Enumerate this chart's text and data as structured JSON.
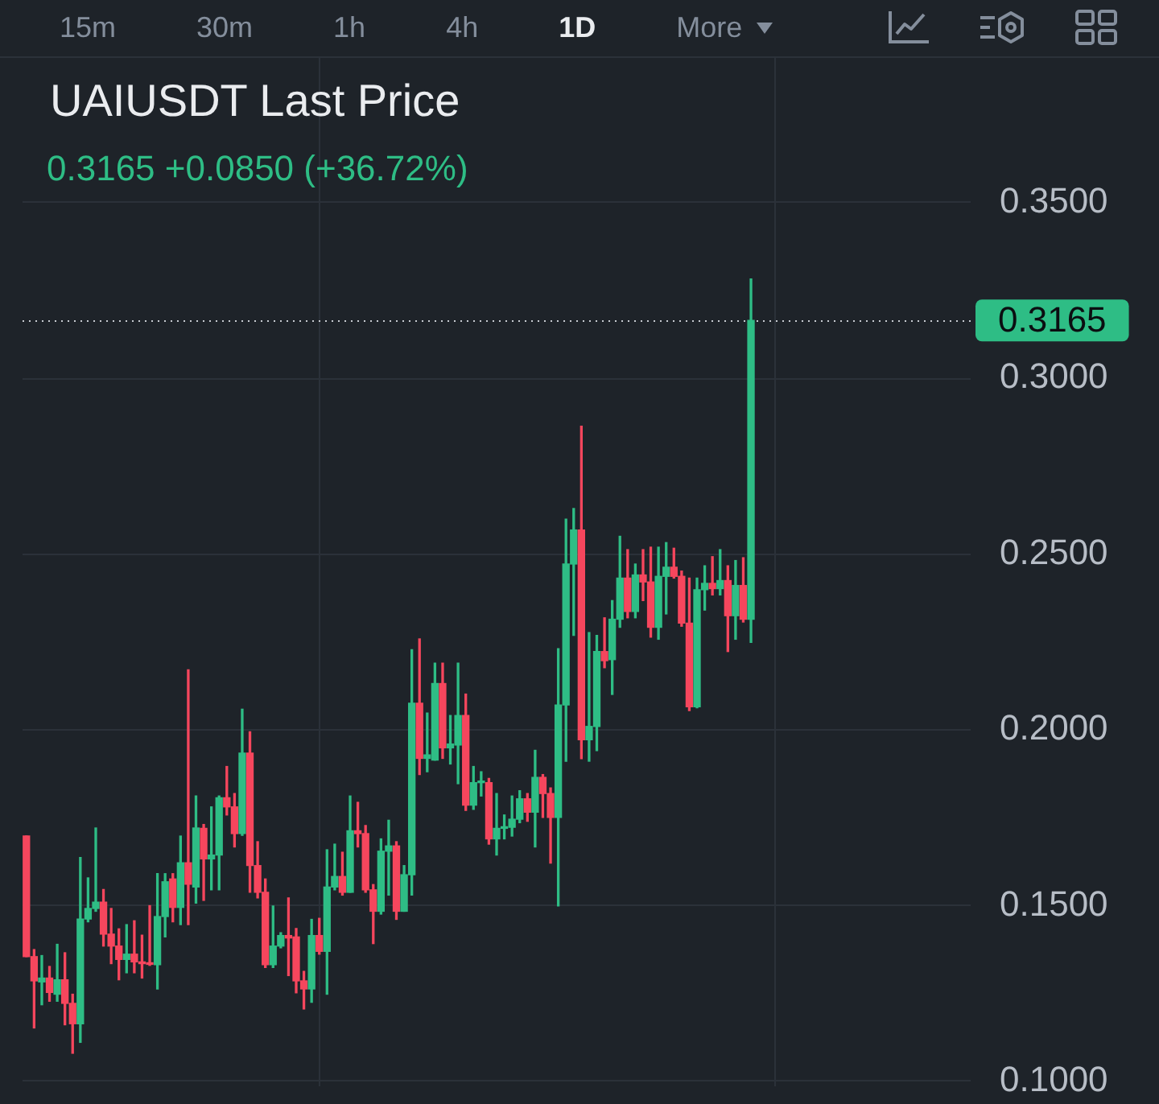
{
  "chart_data": {
    "type": "candlestick",
    "title": "UAIUSDT Last Price",
    "subtitle": "0.3165 +0.0850 (+36.72%)",
    "annotations": [
      "15m",
      "30m",
      "1h",
      "4h",
      "1D",
      "More"
    ],
    "categories": [
      null,
      null,
      null,
      null,
      null,
      null,
      null,
      null,
      null,
      null,
      null,
      null,
      null,
      null,
      null,
      null,
      null,
      null,
      null,
      null,
      null,
      null,
      null,
      null,
      null,
      null,
      null,
      null,
      null,
      null,
      null,
      null,
      null,
      null,
      null,
      null,
      null,
      null,
      null,
      null,
      null,
      null,
      null,
      null,
      null,
      null,
      null,
      null,
      null,
      null,
      null,
      null,
      null,
      null,
      null,
      null,
      null,
      null,
      null,
      null,
      null,
      null,
      null,
      null,
      null,
      null,
      null,
      null,
      null,
      null,
      null,
      null,
      null,
      null,
      null,
      null,
      null,
      null,
      null,
      null,
      null,
      null,
      null,
      null,
      null,
      null,
      null,
      null,
      null,
      null,
      null,
      null,
      null,
      null,
      null,
      null,
      null,
      null,
      null,
      null,
      null,
      null,
      null,
      null,
      null,
      null,
      null,
      null,
      null,
      null,
      null,
      null,
      null,
      null,
      null,
      null,
      null,
      null,
      null,
      null,
      null,
      null,
      null
    ],
    "ohlc": [
      [
        0.1698,
        0.1698,
        0.1355,
        0.1355
      ],
      [
        0.1355,
        0.1375,
        0.1152,
        0.1286
      ],
      [
        0.1283,
        0.1358,
        0.1218,
        0.1294
      ],
      [
        0.1294,
        0.1327,
        0.1228,
        0.1253
      ],
      [
        0.1248,
        0.139,
        0.1228,
        0.1289
      ],
      [
        0.1289,
        0.1366,
        0.1161,
        0.1222
      ],
      [
        0.1222,
        0.1248,
        0.108,
        0.1164
      ],
      [
        0.1164,
        0.1637,
        0.1111,
        0.1462
      ],
      [
        0.1462,
        0.1579,
        0.1454,
        0.1492
      ],
      [
        0.1492,
        0.1721,
        0.1484,
        0.151
      ],
      [
        0.151,
        0.1546,
        0.1385,
        0.1419
      ],
      [
        0.1419,
        0.1492,
        0.1335,
        0.1385
      ],
      [
        0.1385,
        0.1434,
        0.1289,
        0.1347
      ],
      [
        0.1347,
        0.1446,
        0.1309,
        0.1362
      ],
      [
        0.1362,
        0.1457,
        0.1309,
        0.134
      ],
      [
        0.134,
        0.1416,
        0.1294,
        0.1335
      ],
      [
        0.1335,
        0.15,
        0.133,
        0.1333
      ],
      [
        0.1332,
        0.1591,
        0.1263,
        0.1469
      ],
      [
        0.1469,
        0.1591,
        0.1411,
        0.1568
      ],
      [
        0.1576,
        0.1591,
        0.1454,
        0.1495
      ],
      [
        0.1495,
        0.1698,
        0.1446,
        0.1622
      ],
      [
        0.1622,
        0.2171,
        0.1446,
        0.1561
      ],
      [
        0.1553,
        0.1812,
        0.1507,
        0.1721
      ],
      [
        0.172,
        0.1731,
        0.1515,
        0.1633
      ],
      [
        0.1633,
        0.1781,
        0.1545,
        0.1644
      ],
      [
        0.1644,
        0.1812,
        0.1545,
        0.1807
      ],
      [
        0.1807,
        0.1896,
        0.1758,
        0.1781
      ],
      [
        0.1781,
        0.1819,
        0.1667,
        0.1705
      ],
      [
        0.1705,
        0.2059,
        0.17,
        0.1934
      ],
      [
        0.1934,
        0.1995,
        0.1538,
        0.1614
      ],
      [
        0.1614,
        0.1682,
        0.1522,
        0.1538
      ],
      [
        0.1538,
        0.1576,
        0.1324,
        0.1332
      ],
      [
        0.1332,
        0.1499,
        0.1324,
        0.1385
      ],
      [
        0.1385,
        0.1423,
        0.138,
        0.1415
      ],
      [
        0.1415,
        0.1522,
        0.1301,
        0.1408
      ],
      [
        0.1411,
        0.1435,
        0.1252,
        0.1286
      ],
      [
        0.1286,
        0.1313,
        0.1206,
        0.1263
      ],
      [
        0.1263,
        0.1461,
        0.1225,
        0.1415
      ],
      [
        0.1415,
        0.1464,
        0.1362,
        0.137
      ],
      [
        0.137,
        0.1659,
        0.1248,
        0.1553
      ],
      [
        0.1553,
        0.1675,
        0.1545,
        0.1583
      ],
      [
        0.1583,
        0.1652,
        0.153,
        0.1538
      ],
      [
        0.1538,
        0.1812,
        0.1538,
        0.1713
      ],
      [
        0.1713,
        0.1794,
        0.1667,
        0.1705
      ],
      [
        0.1705,
        0.1728,
        0.1538,
        0.1545
      ],
      [
        0.1545,
        0.156,
        0.1392,
        0.1484
      ],
      [
        0.1484,
        0.169,
        0.1476,
        0.1655
      ],
      [
        0.1655,
        0.1743,
        0.153,
        0.167
      ],
      [
        0.167,
        0.1682,
        0.1461,
        0.1484
      ],
      [
        0.1484,
        0.1614,
        0.1484,
        0.1588
      ],
      [
        0.1588,
        0.2228,
        0.153,
        0.2076
      ],
      [
        0.2076,
        0.2259,
        0.1873,
        0.1919
      ],
      [
        0.1919,
        0.2048,
        0.1881,
        0.1929
      ],
      [
        0.1914,
        0.219,
        0.1914,
        0.2132
      ],
      [
        0.2132,
        0.219,
        0.1919,
        0.1949
      ],
      [
        0.1949,
        0.2041,
        0.1903,
        0.196
      ],
      [
        0.1957,
        0.219,
        0.1847,
        0.2041
      ],
      [
        0.2041,
        0.2102,
        0.1771,
        0.1786
      ],
      [
        0.1786,
        0.1896,
        0.1774,
        0.185
      ],
      [
        0.185,
        0.1881,
        0.1812,
        0.1853
      ],
      [
        0.185,
        0.1862,
        0.1675,
        0.169
      ],
      [
        0.169,
        0.1819,
        0.1644,
        0.172
      ],
      [
        0.172,
        0.1758,
        0.169,
        0.1723
      ],
      [
        0.1723,
        0.1812,
        0.1698,
        0.1746
      ],
      [
        0.1746,
        0.1827,
        0.1736,
        0.1804
      ],
      [
        0.1804,
        0.1819,
        0.174,
        0.1766
      ],
      [
        0.1766,
        0.1942,
        0.1667,
        0.1865
      ],
      [
        0.1865,
        0.1873,
        0.1751,
        0.1819
      ],
      [
        0.1819,
        0.1835,
        0.1621,
        0.1751
      ],
      [
        0.1751,
        0.2231,
        0.1499,
        0.2071
      ],
      [
        0.2071,
        0.26,
        0.1911,
        0.2472
      ],
      [
        0.2472,
        0.263,
        0.2269,
        0.2569
      ],
      [
        0.2569,
        0.2864,
        0.1918,
        0.1972
      ],
      [
        0.1972,
        0.2277,
        0.1911,
        0.201
      ],
      [
        0.201,
        0.2269,
        0.1941,
        0.2223
      ],
      [
        0.2223,
        0.2319,
        0.2177,
        0.2197
      ],
      [
        0.22,
        0.2368,
        0.2101,
        0.2315
      ],
      [
        0.2315,
        0.2551,
        0.2292,
        0.2432
      ],
      [
        0.2432,
        0.2513,
        0.2319,
        0.2337
      ],
      [
        0.2337,
        0.2472,
        0.2319,
        0.2441
      ],
      [
        0.2441,
        0.2513,
        0.2368,
        0.2421
      ],
      [
        0.2421,
        0.252,
        0.2264,
        0.2292
      ],
      [
        0.2292,
        0.252,
        0.2258,
        0.2437
      ],
      [
        0.2437,
        0.2533,
        0.233,
        0.2463
      ],
      [
        0.2463,
        0.2517,
        0.2432,
        0.2437
      ],
      [
        0.2437,
        0.2452,
        0.2295,
        0.2304
      ],
      [
        0.2304,
        0.2432,
        0.2055,
        0.2066
      ],
      [
        0.2066,
        0.2432,
        0.2063,
        0.2399
      ],
      [
        0.2399,
        0.2467,
        0.2341,
        0.2417
      ],
      [
        0.2417,
        0.2493,
        0.2384,
        0.2402
      ],
      [
        0.2402,
        0.2513,
        0.2384,
        0.2425
      ],
      [
        0.2425,
        0.2467,
        0.2223,
        0.2325
      ],
      [
        0.2325,
        0.2482,
        0.2258,
        0.2411
      ],
      [
        0.2411,
        0.249,
        0.2307,
        0.2315
      ],
      [
        0.2315,
        0.3283,
        0.2249,
        0.3165
      ],
      null,
      null,
      null,
      null,
      null,
      null,
      null,
      null,
      null,
      null,
      null,
      null,
      null,
      null,
      null,
      null,
      null,
      null,
      null,
      null,
      null,
      null,
      null,
      null,
      null,
      null,
      null,
      null
    ],
    "colors": [
      "#f6465d",
      "#f6465d",
      "#2ebd85",
      "#f6465d",
      "#2ebd85",
      "#f6465d",
      "#f6465d",
      "#2ebd85",
      "#2ebd85",
      "#2ebd85",
      "#f6465d",
      "#f6465d",
      "#f6465d",
      "#2ebd85",
      "#f6465d",
      "#f6465d",
      "#f6465d",
      "#2ebd85",
      "#2ebd85",
      "#f6465d",
      "#2ebd85",
      "#f6465d",
      "#2ebd85",
      "#f6465d",
      "#2ebd85",
      "#2ebd85",
      "#f6465d",
      "#f6465d",
      "#2ebd85",
      "#f6465d",
      "#f6465d",
      "#f6465d",
      "#2ebd85",
      "#2ebd85",
      "#f6465d",
      "#f6465d",
      "#f6465d",
      "#2ebd85",
      "#f6465d",
      "#2ebd85",
      "#2ebd85",
      "#f6465d",
      "#2ebd85",
      "#f6465d",
      "#f6465d",
      "#f6465d",
      "#2ebd85",
      "#2ebd85",
      "#f6465d",
      "#2ebd85",
      "#2ebd85",
      "#f6465d",
      "#2ebd85",
      "#2ebd85",
      "#f6465d",
      "#2ebd85",
      "#2ebd85",
      "#f6465d",
      "#2ebd85",
      "#2ebd85",
      "#f6465d",
      "#2ebd85",
      "#2ebd85",
      "#2ebd85",
      "#2ebd85",
      "#f6465d",
      "#2ebd85",
      "#f6465d",
      "#f6465d",
      "#2ebd85",
      "#2ebd85",
      "#2ebd85",
      "#f6465d",
      "#2ebd85",
      "#2ebd85",
      "#f6465d",
      "#2ebd85",
      "#2ebd85",
      "#f6465d",
      "#2ebd85",
      "#f6465d",
      "#f6465d",
      "#2ebd85",
      "#2ebd85",
      "#f6465d",
      "#f6465d",
      "#f6465d",
      "#2ebd85",
      "#2ebd85",
      "#f6465d",
      "#2ebd85",
      "#f6465d",
      "#2ebd85",
      "#f6465d",
      "#2ebd85",
      null,
      null,
      null,
      null,
      null,
      null,
      null,
      null,
      null,
      null,
      null,
      null,
      null,
      null,
      null,
      null,
      null,
      null,
      null,
      null,
      null,
      null,
      null,
      null,
      null,
      null,
      null,
      null
    ],
    "ylim": [
      0.0986,
      0.3912
    ],
    "yticks": [
      {
        "value": 0.1,
        "label": "0.1000"
      },
      {
        "value": 0.15,
        "label": "0.1500"
      },
      {
        "value": 0.2,
        "label": "0.2000"
      },
      {
        "value": 0.25,
        "label": "0.2500"
      },
      {
        "value": 0.3,
        "label": "0.3000"
      },
      {
        "value": 0.35,
        "label": "0.3500"
      }
    ],
    "grid": true,
    "tick_labels": "y",
    "ref_lines": [
      {
        "axis": "y",
        "value": 0.3165,
        "label": "0.3165",
        "line_style": "dotted"
      }
    ]
  }
}
